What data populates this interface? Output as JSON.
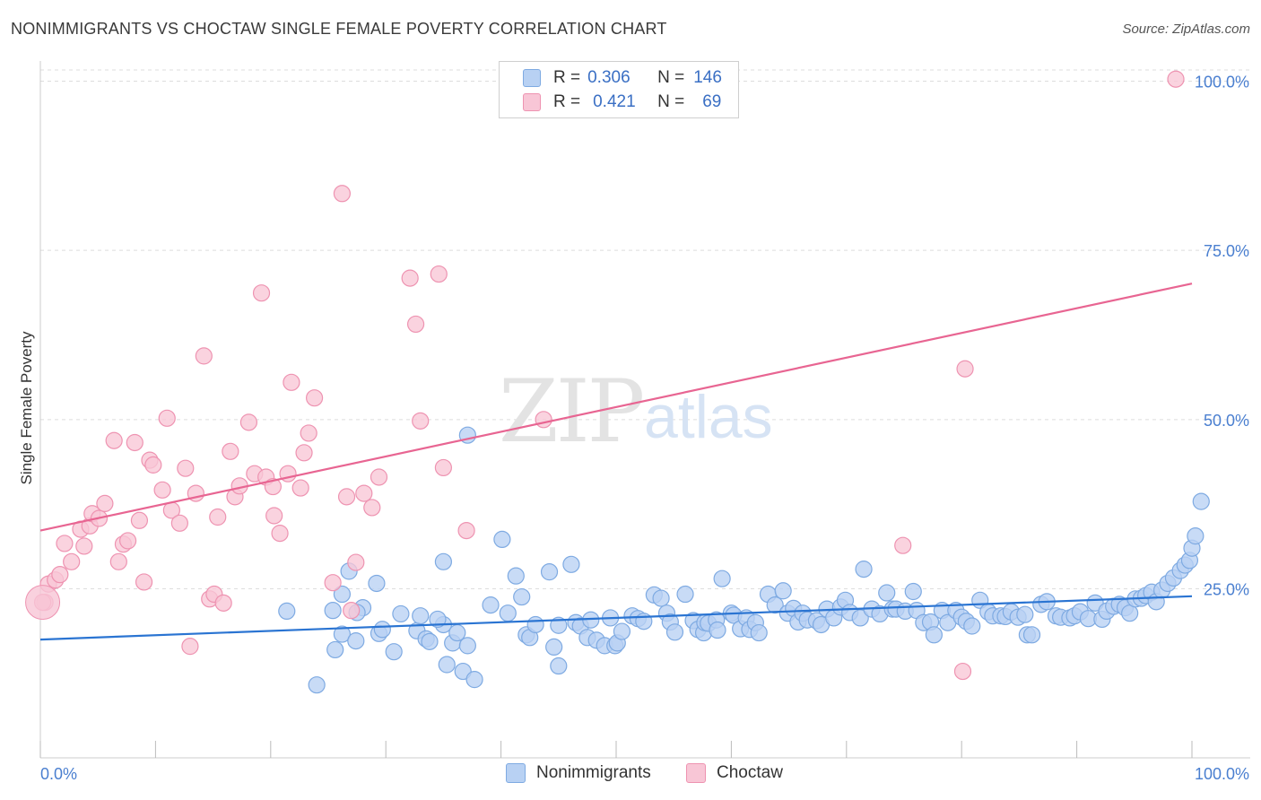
{
  "title": "NONIMMIGRANTS VS CHOCTAW SINGLE FEMALE POVERTY CORRELATION CHART",
  "source": "Source: ZipAtlas.com",
  "watermark": {
    "zip": "ZIP",
    "atlas": "atlas"
  },
  "legend": {
    "rows": [
      {
        "r_label": "R =",
        "r_value": "0.306",
        "n_label": "N =",
        "n_value": "146"
      },
      {
        "r_label": "R =",
        "r_value": "0.421",
        "n_label": "N =",
        "n_value": "69"
      }
    ]
  },
  "colors": {
    "blue_fill": "#b8d1f3",
    "blue_stroke": "#7eaae2",
    "blue_line": "#2a74d2",
    "pink_fill": "#f8c6d6",
    "pink_stroke": "#ee93b1",
    "pink_line": "#e86592",
    "axis_text": "#4a7fd0",
    "grid": "#dddddd"
  },
  "chart_data": {
    "type": "scatter",
    "title": "NONIMMIGRANTS VS CHOCTAW SINGLE FEMALE POVERTY CORRELATION CHART",
    "xlabel": "",
    "ylabel": "Single Female Poverty",
    "xlim": [
      0,
      100
    ],
    "ylim": [
      0,
      100
    ],
    "x_tick_labels": [
      "0.0%",
      "100.0%"
    ],
    "y_tick_labels": [
      "25.0%",
      "50.0%",
      "75.0%",
      "100.0%"
    ],
    "y_ticks": [
      25,
      50,
      75,
      100
    ],
    "x_minor_ticks": [
      0,
      10,
      20,
      30,
      40,
      50,
      60,
      70,
      80,
      90,
      100
    ],
    "grid": "horizontal dashed",
    "legend_position": "bottom",
    "series": [
      {
        "name": "Nonimmigrants",
        "color": "#7eaae2",
        "r": 0.306,
        "n": 146,
        "trend": {
          "x": [
            0,
            100
          ],
          "y": [
            17.5,
            23.9
          ]
        },
        "points": [
          [
            21.4,
            21.7
          ],
          [
            24.0,
            10.8
          ],
          [
            25.4,
            21.8
          ],
          [
            25.6,
            16.0
          ],
          [
            26.2,
            18.3
          ],
          [
            26.2,
            24.2
          ],
          [
            26.8,
            27.6
          ],
          [
            27.4,
            17.3
          ],
          [
            29.2,
            25.8
          ],
          [
            29.4,
            18.4
          ],
          [
            29.7,
            19.0
          ],
          [
            30.7,
            15.7
          ],
          [
            31.3,
            21.3
          ],
          [
            32.7,
            18.8
          ],
          [
            33.5,
            17.6
          ],
          [
            33.8,
            17.2
          ],
          [
            35.0,
            19.7
          ],
          [
            35.3,
            13.8
          ],
          [
            35.8,
            17.0
          ],
          [
            36.2,
            18.5
          ],
          [
            36.7,
            12.8
          ],
          [
            37.1,
            16.6
          ],
          [
            37.7,
            11.6
          ],
          [
            39.1,
            22.6
          ],
          [
            40.1,
            32.3
          ],
          [
            40.6,
            21.4
          ],
          [
            41.3,
            26.9
          ],
          [
            41.8,
            23.8
          ],
          [
            42.2,
            18.2
          ],
          [
            42.5,
            17.8
          ],
          [
            43.0,
            19.7
          ],
          [
            44.2,
            27.5
          ],
          [
            44.6,
            16.4
          ],
          [
            45.0,
            19.6
          ],
          [
            45.0,
            13.6
          ],
          [
            46.1,
            28.6
          ],
          [
            46.5,
            20.0
          ],
          [
            46.9,
            19.5
          ],
          [
            47.5,
            17.8
          ],
          [
            47.8,
            20.4
          ],
          [
            48.3,
            17.4
          ],
          [
            49.0,
            16.6
          ],
          [
            49.5,
            20.7
          ],
          [
            49.9,
            16.6
          ],
          [
            50.1,
            17.0
          ],
          [
            50.5,
            18.7
          ],
          [
            51.4,
            21.0
          ],
          [
            51.9,
            20.6
          ],
          [
            52.4,
            20.2
          ],
          [
            53.3,
            24.1
          ],
          [
            53.9,
            23.6
          ],
          [
            54.4,
            21.4
          ],
          [
            54.7,
            20.1
          ],
          [
            55.1,
            18.6
          ],
          [
            56.0,
            24.2
          ],
          [
            56.7,
            20.3
          ],
          [
            57.1,
            19.0
          ],
          [
            57.6,
            18.5
          ],
          [
            57.7,
            20.0
          ],
          [
            58.0,
            19.9
          ],
          [
            58.7,
            20.4
          ],
          [
            58.8,
            18.9
          ],
          [
            59.2,
            26.5
          ],
          [
            60.0,
            21.4
          ],
          [
            60.2,
            21.1
          ],
          [
            60.8,
            19.1
          ],
          [
            61.3,
            20.7
          ],
          [
            61.6,
            19.0
          ],
          [
            62.1,
            20.0
          ],
          [
            62.4,
            18.5
          ],
          [
            63.2,
            24.2
          ],
          [
            63.8,
            22.6
          ],
          [
            64.5,
            24.7
          ],
          [
            64.9,
            21.4
          ],
          [
            65.4,
            22.1
          ],
          [
            65.8,
            20.1
          ],
          [
            66.2,
            21.4
          ],
          [
            66.6,
            20.4
          ],
          [
            67.4,
            20.3
          ],
          [
            67.8,
            19.7
          ],
          [
            68.3,
            22.0
          ],
          [
            68.9,
            20.7
          ],
          [
            69.5,
            22.3
          ],
          [
            69.9,
            23.3
          ],
          [
            70.3,
            21.5
          ],
          [
            71.2,
            20.7
          ],
          [
            71.5,
            27.9
          ],
          [
            72.2,
            22.0
          ],
          [
            72.9,
            21.3
          ],
          [
            73.5,
            24.4
          ],
          [
            74.0,
            22.0
          ],
          [
            74.3,
            22.0
          ],
          [
            75.1,
            21.7
          ],
          [
            75.8,
            24.6
          ],
          [
            76.1,
            21.8
          ],
          [
            76.7,
            20.0
          ],
          [
            77.3,
            20.1
          ],
          [
            77.6,
            18.2
          ],
          [
            78.3,
            21.8
          ],
          [
            78.8,
            20.0
          ],
          [
            79.5,
            21.8
          ],
          [
            80.0,
            20.8
          ],
          [
            80.4,
            20.2
          ],
          [
            80.9,
            19.5
          ],
          [
            81.6,
            23.3
          ],
          [
            82.3,
            21.6
          ],
          [
            82.7,
            21.0
          ],
          [
            83.4,
            21.0
          ],
          [
            83.8,
            20.9
          ],
          [
            84.3,
            21.6
          ],
          [
            84.9,
            20.8
          ],
          [
            85.5,
            21.2
          ],
          [
            85.7,
            18.2
          ],
          [
            86.1,
            18.2
          ],
          [
            86.9,
            22.7
          ],
          [
            87.4,
            23.1
          ],
          [
            88.2,
            21.0
          ],
          [
            88.6,
            20.8
          ],
          [
            89.4,
            20.7
          ],
          [
            89.8,
            21.0
          ],
          [
            90.3,
            21.6
          ],
          [
            91.0,
            20.6
          ],
          [
            91.6,
            22.9
          ],
          [
            92.2,
            20.5
          ],
          [
            92.6,
            21.7
          ],
          [
            93.2,
            22.4
          ],
          [
            93.7,
            22.7
          ],
          [
            94.2,
            22.2
          ],
          [
            94.6,
            21.4
          ],
          [
            95.1,
            23.5
          ],
          [
            95.6,
            23.6
          ],
          [
            96.0,
            24.0
          ],
          [
            96.5,
            24.5
          ],
          [
            96.9,
            23.1
          ],
          [
            97.4,
            24.8
          ],
          [
            97.9,
            25.8
          ],
          [
            98.4,
            26.6
          ],
          [
            99.0,
            27.7
          ],
          [
            99.4,
            28.5
          ],
          [
            99.8,
            29.2
          ],
          [
            100.0,
            31.0
          ],
          [
            100.3,
            32.8
          ],
          [
            100.8,
            37.9
          ],
          [
            37.1,
            47.7
          ],
          [
            35.0,
            29.0
          ],
          [
            28.0,
            22.2
          ],
          [
            27.5,
            21.5
          ],
          [
            33.0,
            21.0
          ],
          [
            34.5,
            20.5
          ]
        ]
      },
      {
        "name": "Choctaw",
        "color": "#ee93b1",
        "r": 0.421,
        "n": 69,
        "trend": {
          "x": [
            0,
            100
          ],
          "y": [
            33.6,
            70.1
          ]
        },
        "points": [
          [
            0.4,
            23.0
          ],
          [
            0.7,
            25.7
          ],
          [
            1.3,
            26.3
          ],
          [
            1.7,
            27.1
          ],
          [
            2.1,
            31.7
          ],
          [
            2.7,
            29.0
          ],
          [
            3.5,
            33.8
          ],
          [
            3.8,
            31.3
          ],
          [
            4.3,
            34.3
          ],
          [
            4.5,
            36.1
          ],
          [
            5.1,
            35.4
          ],
          [
            5.6,
            37.6
          ],
          [
            6.4,
            46.9
          ],
          [
            6.8,
            29.0
          ],
          [
            7.2,
            31.6
          ],
          [
            7.6,
            32.1
          ],
          [
            8.2,
            46.6
          ],
          [
            8.6,
            35.1
          ],
          [
            9.0,
            26.0
          ],
          [
            9.5,
            44.0
          ],
          [
            9.8,
            43.3
          ],
          [
            10.6,
            39.6
          ],
          [
            11.0,
            50.2
          ],
          [
            11.4,
            36.6
          ],
          [
            12.1,
            34.7
          ],
          [
            12.6,
            42.8
          ],
          [
            13.0,
            16.5
          ],
          [
            13.5,
            39.1
          ],
          [
            14.2,
            59.4
          ],
          [
            14.7,
            23.5
          ],
          [
            15.1,
            24.2
          ],
          [
            15.4,
            35.6
          ],
          [
            15.9,
            22.9
          ],
          [
            16.5,
            45.3
          ],
          [
            16.9,
            38.6
          ],
          [
            17.3,
            40.2
          ],
          [
            18.1,
            49.6
          ],
          [
            18.6,
            42.0
          ],
          [
            19.2,
            68.7
          ],
          [
            19.6,
            41.5
          ],
          [
            20.2,
            40.1
          ],
          [
            20.3,
            35.8
          ],
          [
            20.8,
            33.2
          ],
          [
            21.5,
            42.0
          ],
          [
            21.8,
            55.5
          ],
          [
            22.6,
            39.9
          ],
          [
            22.9,
            45.1
          ],
          [
            23.3,
            48.0
          ],
          [
            23.8,
            53.2
          ],
          [
            25.4,
            25.9
          ],
          [
            26.2,
            83.4
          ],
          [
            26.6,
            38.6
          ],
          [
            27.0,
            21.8
          ],
          [
            27.4,
            28.9
          ],
          [
            28.1,
            39.1
          ],
          [
            28.8,
            37.0
          ],
          [
            29.4,
            41.5
          ],
          [
            32.1,
            70.9
          ],
          [
            32.6,
            64.1
          ],
          [
            33.0,
            49.8
          ],
          [
            34.6,
            71.5
          ],
          [
            35.0,
            42.9
          ],
          [
            37.0,
            33.6
          ],
          [
            43.7,
            50.0
          ],
          [
            74.9,
            31.4
          ],
          [
            80.1,
            12.8
          ],
          [
            80.3,
            57.5
          ],
          [
            98.6,
            100.3
          ],
          [
            0.2,
            23.0
          ]
        ]
      }
    ]
  }
}
